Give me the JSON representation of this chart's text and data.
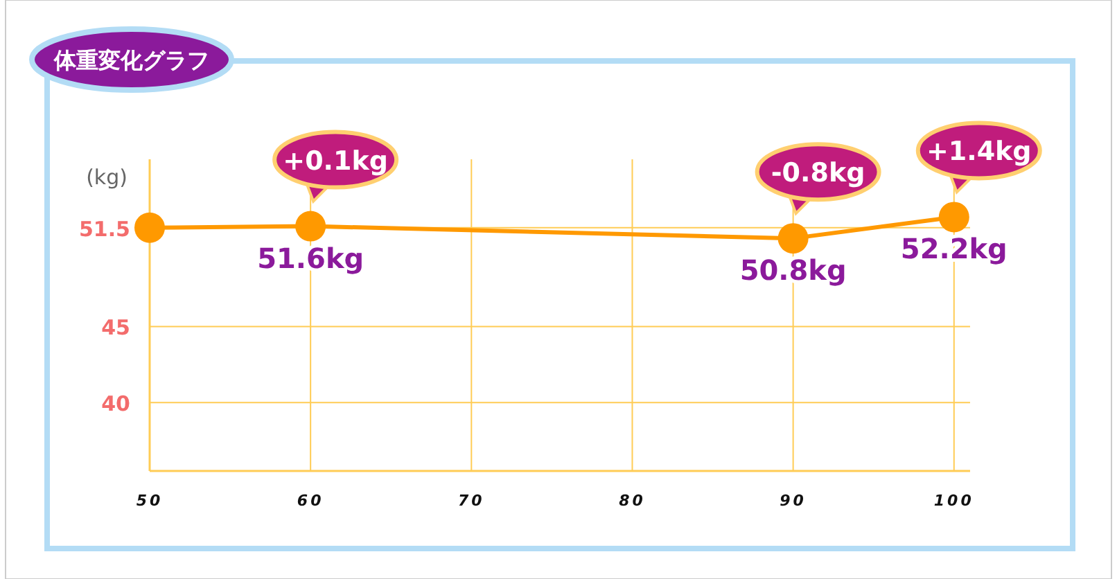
{
  "chart_data": {
    "type": "line",
    "title": "体重変化グラフ",
    "ylabel": "(kg)",
    "x": [
      50,
      60,
      90,
      100
    ],
    "series": [
      {
        "color": "#ff9900",
        "values": [
          51.5,
          51.6,
          50.8,
          52.2
        ],
        "value_labels": [
          null,
          "51.6kg",
          "50.8kg",
          "52.2kg"
        ]
      }
    ],
    "xlim": [
      50,
      101
    ],
    "xticks": [
      50,
      60,
      70,
      80,
      90,
      100
    ],
    "ylim": [
      35.5,
      56
    ],
    "yticks": [
      40,
      45,
      51.5
    ],
    "grid": true,
    "marker": "circle",
    "line_style": "solid",
    "annotations": [
      {
        "text": "+0.1kg",
        "x": 60,
        "y": 51.6
      },
      {
        "text": "-0.8kg",
        "x": 90,
        "y": 50.8
      },
      {
        "text": "+1.4kg",
        "x": 100,
        "y": 52.2
      }
    ]
  }
}
